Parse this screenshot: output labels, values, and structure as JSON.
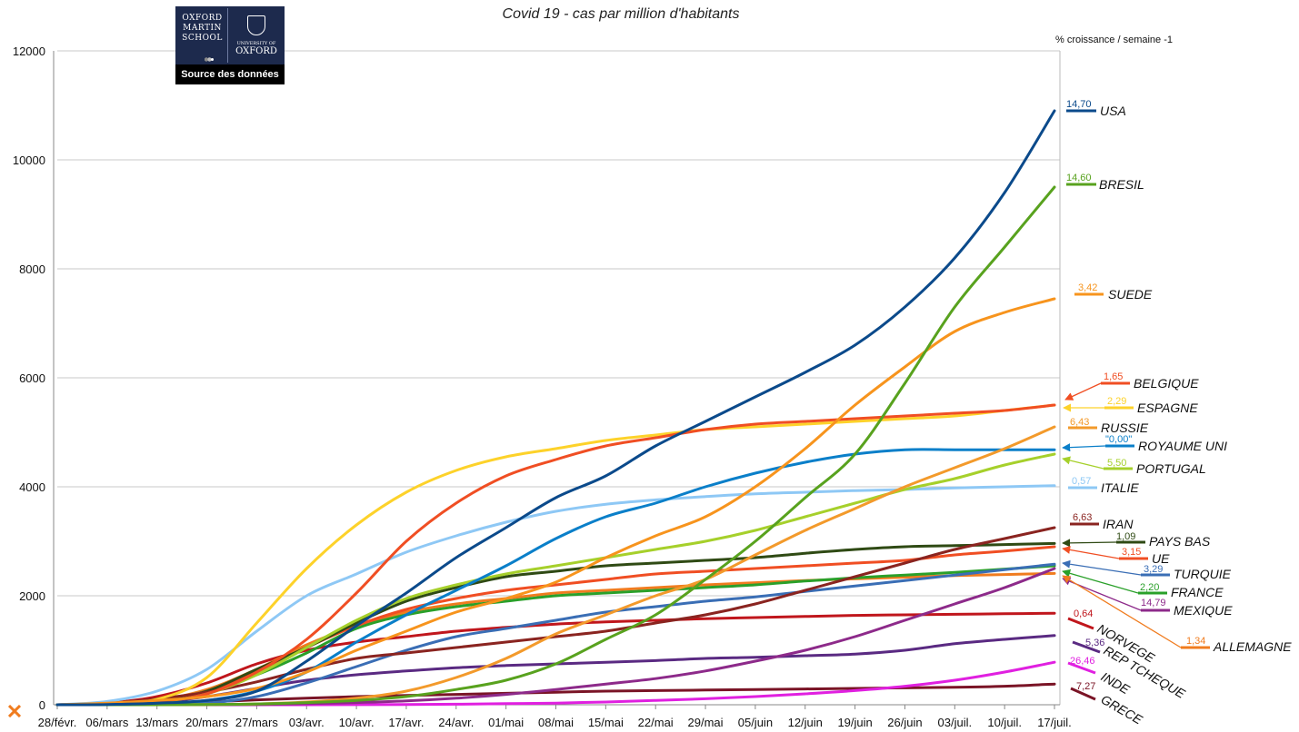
{
  "chart_data": {
    "type": "line",
    "title": "Covid 19 - cas par million d'habitants",
    "ylim": [
      0,
      12000
    ],
    "yticks": [
      0,
      2000,
      4000,
      6000,
      8000,
      10000,
      12000
    ],
    "categories": [
      "28/févr.",
      "06/mars",
      "13/mars",
      "20/mars",
      "27/mars",
      "03/avr.",
      "10/avr.",
      "17/avr.",
      "24/avr.",
      "01/mai",
      "08/mai",
      "15/mai",
      "22/mai",
      "29/mai",
      "05/juin",
      "12/juin",
      "19/juin",
      "26/juin",
      "03/juil.",
      "10/juil.",
      "17/juil."
    ],
    "growth_header": "% croissance / semaine -1",
    "series": [
      {
        "name": "USA",
        "growth": "14,70",
        "color": "#0b4a8b",
        "values": [
          0,
          5,
          30,
          80,
          250,
          800,
          1450,
          2050,
          2700,
          3250,
          3800,
          4200,
          4750,
          5200,
          5650,
          6100,
          6600,
          7300,
          8200,
          9400,
          10900
        ]
      },
      {
        "name": "BRESIL",
        "growth": "14,60",
        "color": "#58a21e",
        "values": [
          0,
          0,
          0,
          5,
          15,
          40,
          80,
          150,
          280,
          450,
          750,
          1200,
          1650,
          2300,
          3000,
          3800,
          4600,
          5900,
          7300,
          8400,
          9500
        ]
      },
      {
        "name": "SUEDE",
        "growth": "3,42",
        "color": "#f7941d",
        "values": [
          0,
          30,
          80,
          150,
          300,
          600,
          1000,
          1350,
          1700,
          1950,
          2250,
          2700,
          3100,
          3450,
          4000,
          4700,
          5500,
          6200,
          6850,
          7200,
          7450
        ]
      },
      {
        "name": "BELGIQUE",
        "growth": "1,65",
        "color": "#f04e23",
        "values": [
          0,
          10,
          60,
          200,
          600,
          1200,
          2050,
          3000,
          3700,
          4200,
          4500,
          4750,
          4900,
          5050,
          5150,
          5200,
          5250,
          5300,
          5350,
          5400,
          5500
        ]
      },
      {
        "name": "ESPAGNE",
        "growth": "2,29",
        "color": "#fdd22a",
        "values": [
          0,
          10,
          100,
          500,
          1500,
          2500,
          3300,
          3900,
          4300,
          4550,
          4700,
          4850,
          4950,
          5050,
          5100,
          5150,
          5200,
          5250,
          5300,
          5400,
          5500
        ]
      },
      {
        "name": "RUSSIE",
        "growth": "6,43",
        "color": "#f39a2b",
        "values": [
          0,
          0,
          0,
          5,
          15,
          50,
          120,
          250,
          500,
          850,
          1300,
          1650,
          2000,
          2300,
          2750,
          3200,
          3600,
          4000,
          4350,
          4700,
          5100
        ]
      },
      {
        "name": "ROYAUME UNI",
        "growth": "\"0,00\"",
        "color": "#0a7fc9",
        "values": [
          0,
          5,
          20,
          80,
          250,
          600,
          1150,
          1650,
          2100,
          2550,
          3050,
          3450,
          3700,
          4000,
          4250,
          4450,
          4600,
          4680,
          4680,
          4680,
          4680
        ]
      },
      {
        "name": "PORTUGAL",
        "growth": "5,50",
        "color": "#a6d02b",
        "values": [
          0,
          5,
          50,
          200,
          550,
          1050,
          1550,
          1950,
          2200,
          2400,
          2550,
          2700,
          2850,
          3000,
          3200,
          3450,
          3700,
          3950,
          4150,
          4400,
          4600
        ]
      },
      {
        "name": "ITALIE",
        "growth": "0,57",
        "color": "#8ec8f5",
        "values": [
          0,
          60,
          250,
          650,
          1350,
          2000,
          2400,
          2800,
          3100,
          3350,
          3550,
          3680,
          3760,
          3820,
          3870,
          3900,
          3930,
          3950,
          3980,
          4000,
          4020
        ]
      },
      {
        "name": "IRAN",
        "growth": "6,63",
        "color": "#8a2420",
        "values": [
          0,
          30,
          110,
          230,
          420,
          650,
          850,
          950,
          1050,
          1150,
          1250,
          1350,
          1500,
          1650,
          1850,
          2100,
          2350,
          2600,
          2850,
          3050,
          3250
        ]
      },
      {
        "name": "PAYS BAS",
        "growth": "1,09",
        "color": "#2f4a14",
        "values": [
          0,
          10,
          70,
          250,
          650,
          1050,
          1500,
          1900,
          2150,
          2350,
          2450,
          2550,
          2600,
          2650,
          2700,
          2780,
          2850,
          2900,
          2920,
          2940,
          2960
        ]
      },
      {
        "name": "UE",
        "growth": "3,15",
        "color": "#f04e23",
        "values": [
          0,
          20,
          80,
          250,
          600,
          1050,
          1450,
          1750,
          1950,
          2100,
          2200,
          2300,
          2400,
          2450,
          2500,
          2550,
          2600,
          2650,
          2750,
          2820,
          2900
        ]
      },
      {
        "name": "TURQUIE",
        "growth": "3,29",
        "color": "#3a6eb5",
        "values": [
          0,
          0,
          5,
          30,
          150,
          400,
          700,
          1000,
          1250,
          1400,
          1550,
          1700,
          1800,
          1900,
          1980,
          2080,
          2180,
          2280,
          2380,
          2480,
          2580
        ]
      },
      {
        "name": "FRANCE",
        "growth": "2,20",
        "color": "#2aa02a",
        "values": [
          0,
          10,
          80,
          250,
          550,
          950,
          1400,
          1650,
          1800,
          1900,
          2000,
          2050,
          2100,
          2150,
          2200,
          2270,
          2330,
          2380,
          2430,
          2490,
          2550
        ]
      },
      {
        "name": "MEXIQUE",
        "growth": "14,79",
        "color": "#8d2a8a",
        "values": [
          0,
          0,
          0,
          0,
          5,
          20,
          40,
          70,
          120,
          190,
          280,
          380,
          480,
          620,
          800,
          1000,
          1250,
          1550,
          1850,
          2150,
          2500
        ]
      },
      {
        "name": "ALLEMAGNE",
        "growth": "1,34",
        "color": "#f07c1f",
        "values": [
          0,
          10,
          80,
          280,
          650,
          1100,
          1450,
          1700,
          1850,
          1950,
          2050,
          2100,
          2150,
          2200,
          2240,
          2280,
          2310,
          2340,
          2370,
          2390,
          2410
        ]
      },
      {
        "name": "NORVEGE",
        "growth": "0,64",
        "color": "#c0161c",
        "values": [
          0,
          30,
          150,
          400,
          750,
          1000,
          1150,
          1250,
          1350,
          1420,
          1480,
          1520,
          1550,
          1580,
          1600,
          1620,
          1640,
          1650,
          1660,
          1670,
          1680
        ]
      },
      {
        "name": "REP TCHEQUE",
        "growth": "5,36",
        "color": "#5a2a82",
        "values": [
          0,
          5,
          40,
          150,
          300,
          450,
          550,
          620,
          680,
          720,
          750,
          780,
          810,
          850,
          870,
          900,
          930,
          1000,
          1120,
          1200,
          1270
        ]
      },
      {
        "name": "INDE",
        "growth": "26,46",
        "color": "#e020e0",
        "values": [
          0,
          0,
          0,
          0,
          0,
          0,
          2,
          5,
          10,
          20,
          30,
          50,
          80,
          110,
          150,
          200,
          260,
          340,
          450,
          600,
          780
        ]
      },
      {
        "name": "GRECE",
        "growth": "7,27",
        "color": "#7a1426",
        "values": [
          0,
          5,
          20,
          50,
          90,
          120,
          150,
          170,
          190,
          210,
          230,
          250,
          260,
          270,
          280,
          290,
          300,
          310,
          320,
          340,
          380
        ]
      }
    ]
  },
  "logo": {
    "left_text": [
      "OXFORD",
      "MARTIN",
      "SCHOOL"
    ],
    "right_text": [
      "UNIVERSITY OF",
      "OXFORD"
    ],
    "caption": "Source des données"
  }
}
